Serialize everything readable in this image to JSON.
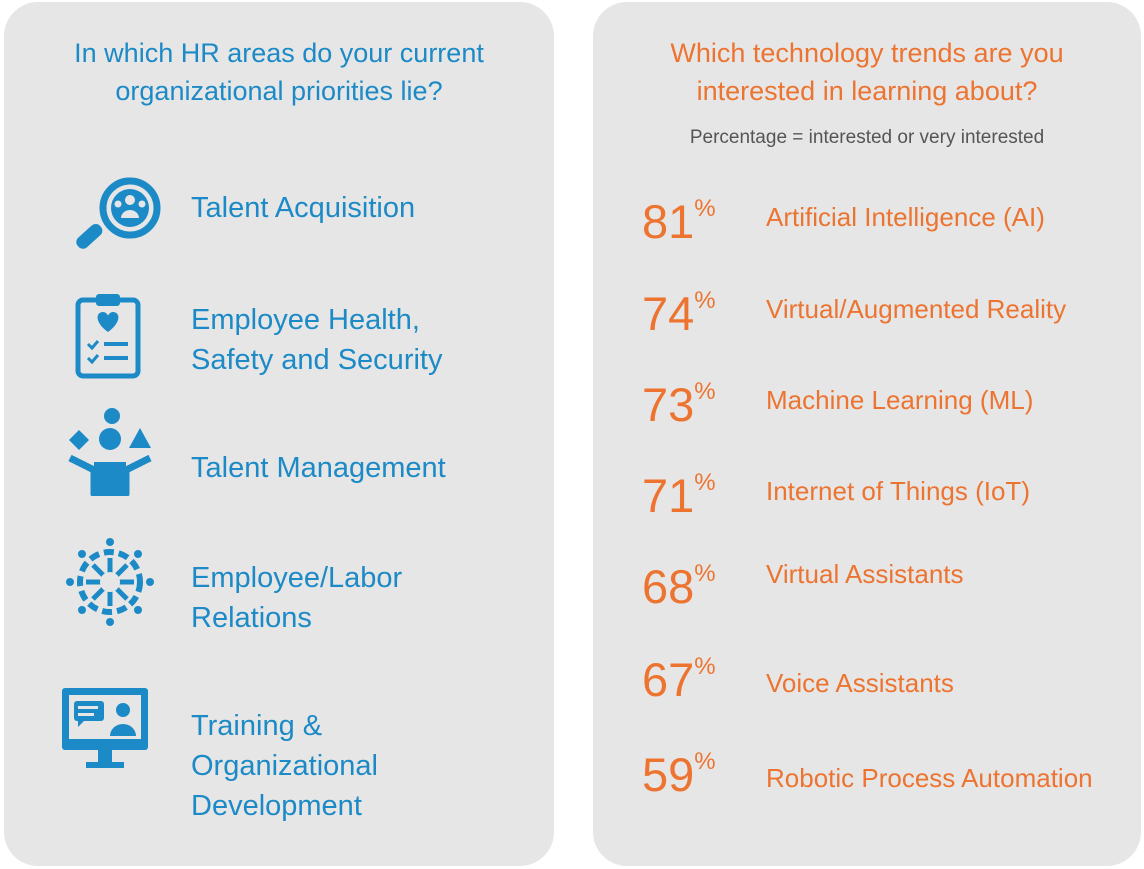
{
  "left": {
    "title_line1": "In which HR areas do your current",
    "title_line2": "organizational priorities  lie?",
    "areas": [
      {
        "label": "Talent Acquisition",
        "icon": "magnifier-people-icon"
      },
      {
        "label": "Employee Health,\nSafety and Security",
        "icon": "clipboard-heart-icon"
      },
      {
        "label": "Talent Management",
        "icon": "person-juggling-shapes-icon"
      },
      {
        "label": "Employee/Labor\nRelations",
        "icon": "network-people-circle-icon"
      },
      {
        "label": "Training &\nOrganizational\nDevelopment",
        "icon": "monitor-video-call-icon"
      }
    ]
  },
  "right": {
    "title_line1": "Which technology trends are you",
    "title_line2": "interested in learning  about?",
    "subtitle": "Percentage = interested or very interested",
    "percent_sign": "%",
    "trends": [
      {
        "value": "81",
        "label": "Artificial Intelligence (AI)"
      },
      {
        "value": "74",
        "label": "Virtual/Augmented Reality"
      },
      {
        "value": "73",
        "label": "Machine Learning (ML)"
      },
      {
        "value": "71",
        "label": "Internet of Things (IoT)"
      },
      {
        "value": "68",
        "label": "Virtual Assistants"
      },
      {
        "value": "67",
        "label": "Voice Assistants"
      },
      {
        "value": "59",
        "label": "Robotic Process Automation"
      }
    ]
  },
  "colors": {
    "blue": "#1b8ac6",
    "orange": "#ed7430",
    "panel": "#e6e6e6"
  }
}
